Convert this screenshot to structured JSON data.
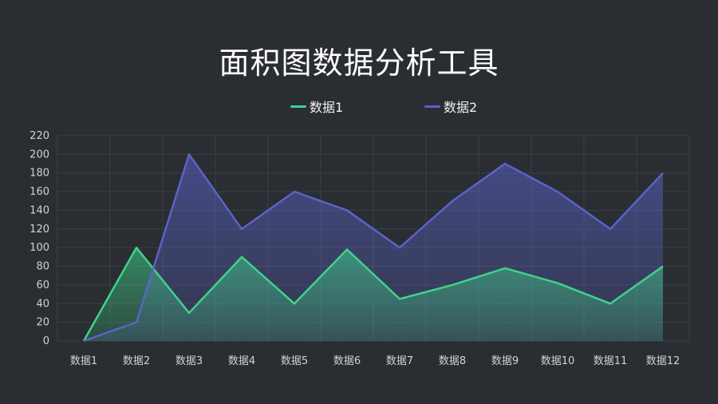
{
  "title": "面积图数据分析工具",
  "colors": {
    "background": "#2a2d32",
    "series1": "#3fd38a",
    "series2": "#5a63c9",
    "grid": "#3a3f48",
    "tick": "#cfd2d6"
  },
  "chart_data": {
    "type": "area",
    "title": "面积图数据分析工具",
    "xlabel": "",
    "ylabel": "",
    "categories": [
      "数据1",
      "数据2",
      "数据3",
      "数据4",
      "数据5",
      "数据6",
      "数据7",
      "数据8",
      "数据9",
      "数据10",
      "数据11",
      "数据12"
    ],
    "series": [
      {
        "name": "数据1",
        "values": [
          0,
          100,
          30,
          90,
          40,
          98,
          45,
          60,
          78,
          62,
          40,
          80
        ]
      },
      {
        "name": "数据2",
        "values": [
          0,
          20,
          200,
          120,
          160,
          140,
          100,
          150,
          190,
          160,
          120,
          180
        ]
      }
    ],
    "ylim": [
      0,
      220
    ],
    "yticks": [
      0,
      20,
      40,
      60,
      80,
      100,
      120,
      140,
      160,
      180,
      200,
      220
    ],
    "grid": true,
    "legend": "top-center"
  }
}
